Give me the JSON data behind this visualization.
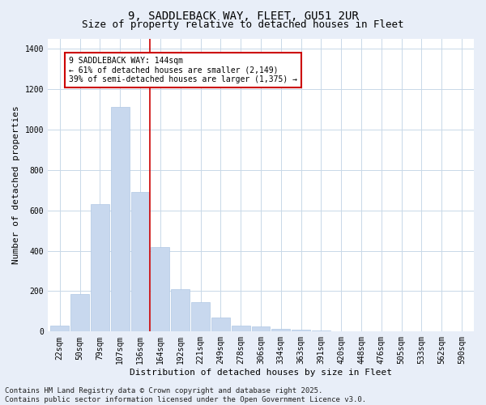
{
  "title_line1": "9, SADDLEBACK WAY, FLEET, GU51 2UR",
  "title_line2": "Size of property relative to detached houses in Fleet",
  "xlabel": "Distribution of detached houses by size in Fleet",
  "ylabel": "Number of detached properties",
  "bar_color": "#c8d8ee",
  "bar_edge_color": "#b0c8e4",
  "categories": [
    "22sqm",
    "50sqm",
    "79sqm",
    "107sqm",
    "136sqm",
    "164sqm",
    "192sqm",
    "221sqm",
    "249sqm",
    "278sqm",
    "306sqm",
    "334sqm",
    "363sqm",
    "391sqm",
    "420sqm",
    "448sqm",
    "476sqm",
    "505sqm",
    "533sqm",
    "562sqm",
    "590sqm"
  ],
  "values": [
    30,
    185,
    630,
    1110,
    690,
    420,
    210,
    145,
    70,
    30,
    25,
    15,
    10,
    5,
    2,
    1,
    0,
    0,
    0,
    0,
    0
  ],
  "ylim": [
    0,
    1450
  ],
  "yticks": [
    0,
    200,
    400,
    600,
    800,
    1000,
    1200,
    1400
  ],
  "vline_index": 4.5,
  "vline_color": "#cc0000",
  "annotation_line1": "9 SADDLEBACK WAY: 144sqm",
  "annotation_line2": "← 61% of detached houses are smaller (2,149)",
  "annotation_line3": "39% of semi-detached houses are larger (1,375) →",
  "annotation_box_color": "#cc0000",
  "footnote": "Contains HM Land Registry data © Crown copyright and database right 2025.\nContains public sector information licensed under the Open Government Licence v3.0.",
  "background_color": "#e8eef8",
  "plot_bg_color": "#ffffff",
  "grid_color": "#c8d8e8",
  "title_fontsize": 10,
  "subtitle_fontsize": 9,
  "footnote_fontsize": 6.5,
  "axis_fontsize": 7,
  "ylabel_fontsize": 8,
  "xlabel_fontsize": 8
}
